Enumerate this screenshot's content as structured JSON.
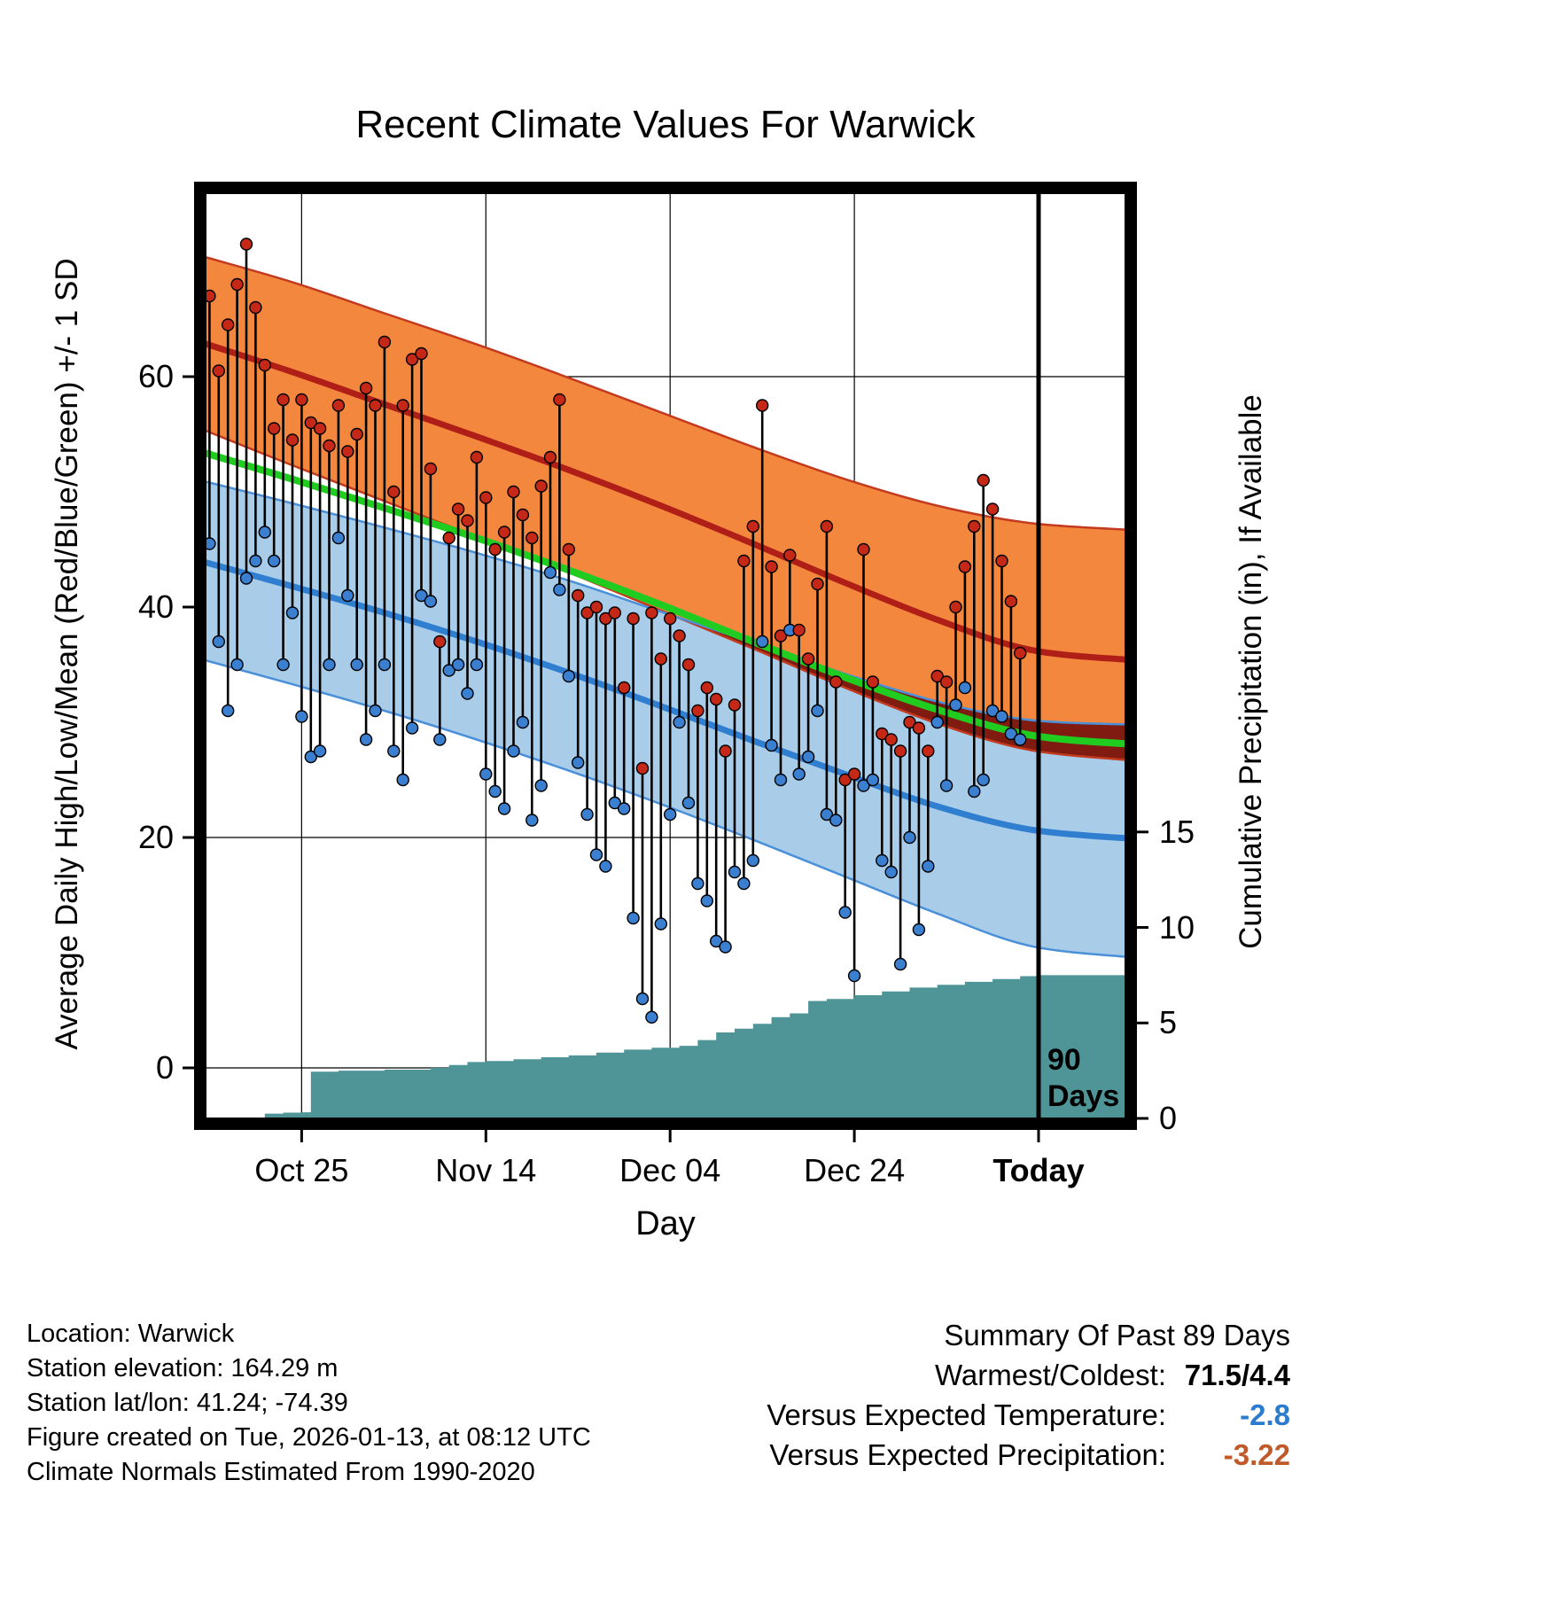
{
  "title": "Recent Climate Values For Warwick",
  "axes": {
    "left_label": "Average Daily High/Low/Mean (Red/Blue/Green) +/- 1 SD",
    "right_label": "Cumulative Precipitation (in), If Available",
    "x_label": "Day",
    "left_ticks": [
      0,
      20,
      40,
      60
    ],
    "right_ticks": [
      0,
      5,
      10,
      15
    ],
    "x_ticks": [
      {
        "day": 11,
        "label": "Oct 25",
        "bold": false
      },
      {
        "day": 31,
        "label": "Nov 14",
        "bold": false
      },
      {
        "day": 51,
        "label": "Dec 04",
        "bold": false
      },
      {
        "day": 71,
        "label": "Dec 24",
        "bold": false
      },
      {
        "day": 91,
        "label": "Today",
        "bold": true
      }
    ]
  },
  "annotations": {
    "ninety_line1": "90",
    "ninety_line2": "Days"
  },
  "footer_left": [
    "Location: Warwick",
    "Station elevation: 164.29 m",
    "Station lat/lon: 41.24; -74.39",
    "Figure created on Tue, 2026-01-13, at 08:12 UTC",
    "Climate Normals Estimated From 1990-2020"
  ],
  "summary": {
    "title": "Summary Of Past 89 Days",
    "rows": [
      {
        "label": "Warmest/Coldest:",
        "value": "71.5/4.4",
        "color": "#000000"
      },
      {
        "label": "Versus Expected Temperature:",
        "value": "-2.8",
        "color": "#2b7bce"
      },
      {
        "label": "Versus Expected Precipitation:",
        "value": "-3.22",
        "color": "#c05a2a"
      }
    ]
  },
  "colors": {
    "high_band": "#f2873d",
    "high_edge": "#c43a1e",
    "high_mean": "#b01f17",
    "low_band": "#a9cce9",
    "low_edge": "#4a90d9",
    "low_mean": "#2f7ed0",
    "mean_line": "#21cc21",
    "overlap_band": "#801b12",
    "precip_fill": "#4f9598",
    "obs_high_dot": "#c62817",
    "obs_low_dot": "#3a7fd0",
    "stem": "#000000",
    "grid": "#000000",
    "today_line": "#000000",
    "summary_temp_value": "#2b7bce",
    "summary_precip_value": "#c05a2a"
  },
  "chart_data": {
    "type": "line",
    "title": "Recent Climate Values For Warwick",
    "xlabel": "Day",
    "ylabel_left": "Average Daily High/Low/Mean (Red/Blue/Green) +/- 1 SD",
    "ylabel_right": "Cumulative Precipitation (in), If Available",
    "x_domain_days": [
      0,
      101
    ],
    "today_day": 91,
    "temp_ticks": [
      0,
      20,
      40,
      60
    ],
    "precip_ticks": [
      0,
      5,
      10,
      15
    ],
    "normals": {
      "days": [
        0,
        10,
        20,
        30,
        40,
        50,
        60,
        70,
        80,
        90,
        101
      ],
      "high_upper": [
        70.5,
        68.2,
        65.5,
        62.8,
        59.9,
        56.9,
        53.9,
        51.1,
        48.8,
        47.3,
        46.7
      ],
      "high_mean": [
        63.0,
        60.4,
        57.6,
        54.8,
        51.9,
        48.8,
        45.5,
        42.1,
        38.9,
        36.3,
        35.4
      ],
      "high_lower": [
        55.5,
        52.3,
        49.2,
        46.1,
        43.0,
        39.7,
        36.4,
        33.0,
        29.9,
        27.6,
        26.7
      ],
      "mean": [
        53.5,
        51.1,
        48.6,
        46.0,
        43.2,
        40.2,
        37.0,
        33.9,
        31.1,
        28.9,
        28.1
      ],
      "low_upper": [
        51.0,
        49.0,
        46.9,
        44.7,
        42.3,
        39.6,
        36.9,
        34.2,
        31.8,
        30.2,
        29.8
      ],
      "low_mean": [
        44.0,
        41.8,
        39.5,
        37.0,
        34.3,
        31.4,
        28.4,
        25.5,
        22.7,
        20.7,
        19.9
      ],
      "low_lower": [
        35.5,
        33.3,
        31.0,
        28.5,
        25.8,
        22.9,
        19.8,
        16.6,
        13.4,
        10.6,
        9.6
      ]
    },
    "observations": {
      "start_day": 1,
      "highs": [
        67,
        60.5,
        64.5,
        68,
        71.5,
        66,
        61,
        55.5,
        58,
        54.5,
        58,
        56,
        55.5,
        54,
        57.5,
        53.5,
        55,
        59,
        57.5,
        63,
        50,
        57.5,
        61.5,
        62,
        52,
        37,
        46,
        48.5,
        47.5,
        53,
        49.5,
        45,
        46.5,
        50,
        48,
        46,
        50.5,
        53,
        58,
        45,
        41,
        39.5,
        40,
        39,
        39.5,
        33,
        39,
        26,
        39.5,
        35.5,
        39,
        37.5,
        35,
        31,
        33,
        32,
        27.5,
        31.5,
        44,
        47,
        57.5,
        43.5,
        37.5,
        44.5,
        38,
        35.5,
        42,
        47,
        33.5,
        25,
        25.5,
        45,
        33.5,
        29,
        28.5,
        27.5,
        30,
        29.5,
        27.5,
        34,
        33.5,
        40,
        43.5,
        47,
        51,
        48.5,
        44,
        40.5,
        36
      ],
      "lows": [
        45.5,
        37,
        31,
        35,
        42.5,
        44,
        46.5,
        44,
        35,
        39.5,
        30.5,
        27,
        27.5,
        35,
        46,
        41,
        35,
        28.5,
        31,
        35,
        27.5,
        25,
        29.5,
        41,
        40.5,
        28.5,
        34.5,
        35,
        32.5,
        35,
        25.5,
        24,
        22.5,
        27.5,
        30,
        21.5,
        24.5,
        43,
        41.5,
        34,
        26.5,
        22,
        18.5,
        17.5,
        23,
        22.5,
        13,
        6,
        4.4,
        12.5,
        22,
        30,
        23,
        16,
        14.5,
        11,
        10.5,
        17,
        16,
        18,
        37,
        28,
        25,
        38,
        25.5,
        27,
        31,
        22,
        21.5,
        13.5,
        8,
        24.5,
        25,
        18,
        17,
        9,
        20,
        12,
        17.5,
        30,
        24.5,
        31.5,
        33,
        24,
        25,
        31,
        30.5,
        29,
        28.5
      ]
    },
    "cumulative_precip": {
      "units": "in",
      "points": [
        [
          4,
          0
        ],
        [
          5,
          0.02
        ],
        [
          7,
          0.25
        ],
        [
          9,
          0.3
        ],
        [
          11,
          0.32
        ],
        [
          12,
          2.45
        ],
        [
          15,
          2.5
        ],
        [
          20,
          2.55
        ],
        [
          25,
          2.65
        ],
        [
          27,
          2.8
        ],
        [
          29,
          2.95
        ],
        [
          31,
          3.0
        ],
        [
          34,
          3.1
        ],
        [
          37,
          3.2
        ],
        [
          40,
          3.3
        ],
        [
          43,
          3.45
        ],
        [
          46,
          3.6
        ],
        [
          49,
          3.7
        ],
        [
          52,
          3.8
        ],
        [
          54,
          4.1
        ],
        [
          56,
          4.5
        ],
        [
          58,
          4.7
        ],
        [
          60,
          4.95
        ],
        [
          62,
          5.3
        ],
        [
          64,
          5.5
        ],
        [
          66,
          6.15
        ],
        [
          68,
          6.25
        ],
        [
          71,
          6.45
        ],
        [
          74,
          6.65
        ],
        [
          77,
          6.85
        ],
        [
          80,
          7.0
        ],
        [
          83,
          7.15
        ],
        [
          86,
          7.3
        ],
        [
          89,
          7.45
        ],
        [
          91,
          7.5
        ],
        [
          101,
          7.55
        ]
      ]
    }
  }
}
